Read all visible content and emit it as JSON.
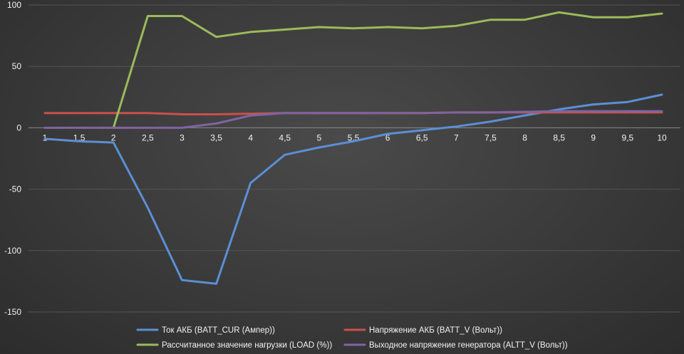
{
  "chart_data": {
    "type": "line",
    "title": "",
    "xlabel": "",
    "ylabel": "",
    "x": [
      1,
      1.5,
      2,
      2.5,
      3,
      3.5,
      4,
      4.5,
      5,
      5.5,
      6,
      6.5,
      7,
      7.5,
      8,
      8.5,
      9,
      9.5,
      10
    ],
    "x_tick_labels": [
      "1",
      "1,5",
      "2",
      "2,5",
      "3",
      "3,5",
      "4",
      "4,5",
      "5",
      "5,5",
      "6",
      "6,5",
      "7",
      "7,5",
      "8",
      "8,5",
      "9",
      "9,5",
      "10"
    ],
    "ylim": [
      -150,
      100
    ],
    "y_ticks": [
      100,
      50,
      0,
      -50,
      -100,
      -150
    ],
    "y_tick_labels": [
      "100",
      "50",
      "0",
      "-50",
      "-100",
      "-150"
    ],
    "grid": true,
    "legend_position": "bottom",
    "series": [
      {
        "name": "Ток АКБ (BATT_CUR (Ампер))",
        "color": "#5b8fd4",
        "values": [
          -9,
          -11,
          -12,
          -65,
          -124,
          -127,
          -45,
          -22,
          -16,
          -11,
          -5,
          -2,
          1,
          5,
          10,
          15,
          19,
          21,
          27
        ]
      },
      {
        "name": "Напряжение АКБ (BATT_V (Вольт))",
        "color": "#c9504a",
        "values": [
          12,
          12,
          12,
          12,
          11,
          11,
          11.5,
          12,
          12,
          12,
          12,
          12,
          12.5,
          12.5,
          12.5,
          12.5,
          12.5,
          12.5,
          12.5
        ]
      },
      {
        "name": "Рассчитанное значение нагрузки (LOAD (%))",
        "color": "#9bbb59",
        "values": [
          null,
          null,
          0,
          91,
          91,
          74,
          78,
          80,
          82,
          81,
          82,
          81,
          83,
          88,
          88,
          94,
          90,
          90,
          93
        ]
      },
      {
        "name": "Выходное напряжение генератора (ALTT_V (Вольт))",
        "color": "#8064a2",
        "values": [
          0,
          0,
          0,
          0,
          0,
          3.5,
          10,
          12,
          12,
          12,
          12,
          12,
          12.5,
          12.5,
          13,
          13.5,
          13.5,
          13.5,
          13.5
        ]
      }
    ]
  }
}
